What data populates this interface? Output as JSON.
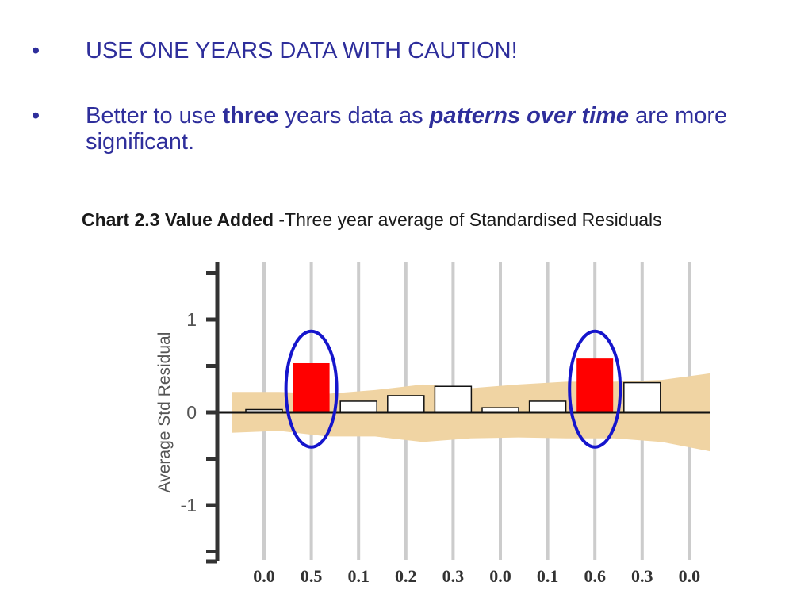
{
  "bullets": {
    "symbol": "•",
    "item1": "USE ONE YEARS DATA WITH CAUTION!",
    "item2": {
      "part1": "Better to use ",
      "bold": "three",
      "part2": " years data as ",
      "bolditalic": "patterns over time",
      "part3": " are more significant."
    }
  },
  "chart_data": {
    "type": "bar",
    "title_bold": "Chart 2.3 Value Added",
    "title_rest": " -Three year average of Standardised Residuals",
    "ylabel": "Average Std Residual",
    "categories": [
      "0.0",
      "0.5",
      "0.1",
      "0.2",
      "0.3",
      "0.0",
      "0.1",
      "0.6",
      "0.3",
      "0.0"
    ],
    "values": [
      0.03,
      0.53,
      0.12,
      0.18,
      0.28,
      0.05,
      0.12,
      0.58,
      0.32,
      0.0
    ],
    "highlighted": [
      1,
      7
    ],
    "circled": [
      1,
      7
    ],
    "band_upper": [
      0.22,
      0.22,
      0.2,
      0.24,
      0.3,
      0.26,
      0.3,
      0.33,
      0.33,
      0.35,
      0.42
    ],
    "band_lower": [
      -0.22,
      -0.2,
      -0.26,
      -0.26,
      -0.32,
      -0.28,
      -0.27,
      -0.28,
      -0.28,
      -0.32,
      -0.42
    ],
    "yticks": [
      1,
      0,
      -1
    ],
    "ylim": [
      -1.6,
      1.6
    ],
    "grid": true,
    "colors": {
      "highlight": "#ff0000",
      "bar": "#ffffff",
      "band": "#f0d4a3",
      "circle": "#1515cc",
      "gridline": "#cccccc",
      "axis": "#333333"
    }
  }
}
